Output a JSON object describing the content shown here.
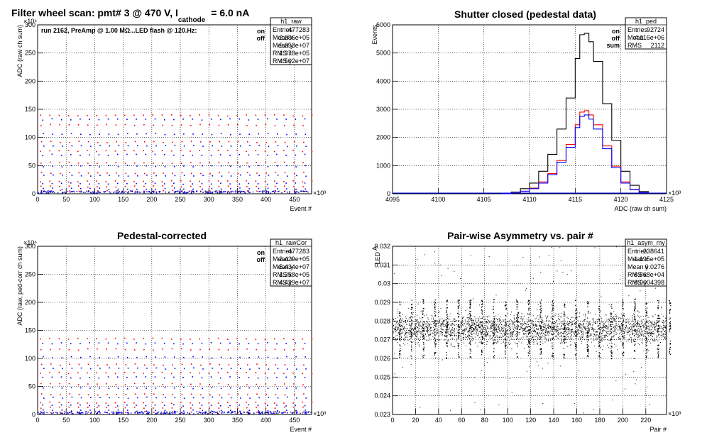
{
  "chart_data": [
    {
      "type": "scatter",
      "panel": "top-left",
      "title": "Filter wheel scan: pmt#   3 @   470 V, I",
      "title_sub": "cathode",
      "title_tail": "= 6.0 nA",
      "subtitle": "run 2162, PreAmp @ 1.00 MΩ...LED flash @  120.Hz:",
      "ylabel": "ADC (raw ch sum)",
      "xlabel": "Event #",
      "xticks": [
        "0",
        "50",
        "100",
        "150",
        "200",
        "250",
        "300",
        "350",
        "400",
        "450"
      ],
      "yticks": [
        "0",
        "50",
        "100",
        "150",
        "200",
        "250",
        "300"
      ],
      "xexp": "×10³",
      "yexp": "×10⁶",
      "xlim": [
        0,
        480
      ],
      "ylim": [
        0,
        300
      ],
      "grid": true,
      "legend": [
        {
          "name": "on",
          "color": "#ff0000"
        },
        {
          "name": "off",
          "color": "#0000ff"
        }
      ],
      "stats": {
        "name": "h1_raw",
        "rows": [
          [
            "Entries",
            "477283"
          ],
          [
            "Mean x",
            "2.386e+05"
          ],
          [
            "Mean y",
            "5.353e+07"
          ],
          [
            "RMS x",
            "1.378e+05"
          ],
          [
            "RMS y",
            "4.502e+07"
          ]
        ]
      },
      "levels_on": [
        140,
        123,
        93,
        77,
        56,
        38,
        23,
        14,
        6
      ],
      "levels_off": [
        133,
        107,
        86,
        70,
        50,
        33,
        19,
        10,
        4
      ]
    },
    {
      "type": "line",
      "panel": "top-right",
      "title": "Shutter closed (pedestal data)",
      "ylabel": "Events",
      "xlabel": "ADC (raw ch sum)",
      "xticks": [
        "4095",
        "4100",
        "4105",
        "4110",
        "4115",
        "4120",
        "4125"
      ],
      "yticks": [
        "0",
        "1000",
        "2000",
        "3000",
        "4000",
        "5000",
        "6000"
      ],
      "xexp": "×10³",
      "xlim": [
        4095,
        4125
      ],
      "ylim": [
        0,
        6000
      ],
      "grid": true,
      "legend": [
        {
          "name": "on",
          "color": "#ff0000"
        },
        {
          "name": "off",
          "color": "#0000ff"
        },
        {
          "name": "sum",
          "color": "#000000"
        }
      ],
      "stats": {
        "name": "h1_ped",
        "rows": [
          [
            "Entries",
            "92724"
          ],
          [
            "Mean",
            "4.116e+06"
          ],
          [
            "RMS",
            "2112"
          ]
        ]
      },
      "series": [
        {
          "name": "sum",
          "color": "#000000",
          "x": [
            4107,
            4108,
            4109,
            4110,
            4111,
            4112,
            4113,
            4114,
            4115,
            4115.5,
            4116,
            4116.5,
            4117,
            4118,
            4119,
            4120,
            4121,
            4122,
            4123
          ],
          "values": [
            0,
            60,
            180,
            380,
            800,
            1400,
            2300,
            3400,
            4800,
            5650,
            5700,
            5400,
            4700,
            3200,
            1900,
            800,
            300,
            80,
            0
          ]
        },
        {
          "name": "on",
          "color": "#ff0000",
          "x": [
            4107,
            4108,
            4109,
            4110,
            4111,
            4112,
            4113,
            4114,
            4115,
            4115.5,
            4116,
            4116.5,
            4117,
            4118,
            4119,
            4120,
            4121,
            4122,
            4123
          ],
          "values": [
            0,
            30,
            90,
            200,
            420,
            720,
            1180,
            1750,
            2450,
            2900,
            2950,
            2800,
            2450,
            1700,
            980,
            420,
            150,
            40,
            0
          ]
        },
        {
          "name": "off",
          "color": "#0000ff",
          "x": [
            4107,
            4108,
            4109,
            4110,
            4111,
            4112,
            4113,
            4114,
            4115,
            4115.5,
            4116,
            4116.5,
            4117,
            4118,
            4119,
            4120,
            4121,
            4122,
            4123
          ],
          "values": [
            0,
            30,
            90,
            180,
            380,
            680,
            1120,
            1650,
            2350,
            2750,
            2800,
            2650,
            2300,
            1600,
            920,
            380,
            140,
            40,
            0
          ]
        }
      ]
    },
    {
      "type": "scatter",
      "panel": "bottom-left",
      "title": "Pedestal-corrected",
      "ylabel": "ADC (raw, ped-corr ch sum)",
      "xlabel": "Event #",
      "xticks": [
        "0",
        "50",
        "100",
        "150",
        "200",
        "250",
        "300",
        "350",
        "400",
        "450"
      ],
      "yticks": [
        "0",
        "50",
        "100",
        "150",
        "200",
        "250",
        "300"
      ],
      "xexp": "×10³",
      "yexp": "×10⁶",
      "xlim": [
        0,
        480
      ],
      "ylim": [
        0,
        300
      ],
      "grid": true,
      "legend": [
        {
          "name": "on",
          "color": "#ff0000"
        },
        {
          "name": "off",
          "color": "#0000ff"
        }
      ],
      "stats": {
        "name": "h1_rawCor",
        "rows": [
          [
            "Entries",
            "477283"
          ],
          [
            "Mean x",
            "2.429e+05"
          ],
          [
            "Mean y",
            "5.434e+07"
          ],
          [
            "RMS x",
            "1.358e+05"
          ],
          [
            "RMS y",
            "4.429e+07"
          ]
        ]
      },
      "levels_on": [
        136,
        117,
        90,
        75,
        55,
        37,
        22,
        13,
        5
      ],
      "levels_off": [
        128,
        103,
        83,
        67,
        48,
        31,
        17,
        8,
        3
      ]
    },
    {
      "type": "scatter",
      "panel": "bottom-right",
      "title": "Pair-wise Asymmetry vs. pair #",
      "ylabel": "A",
      "ylabel_sub": "LED",
      "xlabel": "Pair #",
      "xticks": [
        "0",
        "20",
        "40",
        "60",
        "80",
        "100",
        "120",
        "140",
        "160",
        "180",
        "200",
        "220"
      ],
      "yticks": [
        "0.023",
        "0.024",
        "0.025",
        "0.026",
        "0.027",
        "0.028",
        "0.029",
        "0.03",
        "0.031",
        "0.032"
      ],
      "xexp": "×10³",
      "xlim": [
        0,
        238
      ],
      "ylim": [
        0.023,
        0.032
      ],
      "grid": true,
      "stats": {
        "name": "h1_asym_my",
        "rows": [
          [
            "Entries",
            "238641"
          ],
          [
            "Mean x",
            "1.195e+05"
          ],
          [
            "Mean y",
            "0.0276"
          ],
          [
            "RMS x",
            "6.868e+04"
          ],
          [
            "RMS y",
            "0.0004398"
          ]
        ]
      },
      "band_center": 0.0276,
      "band_halfwidth": 0.00045
    }
  ]
}
